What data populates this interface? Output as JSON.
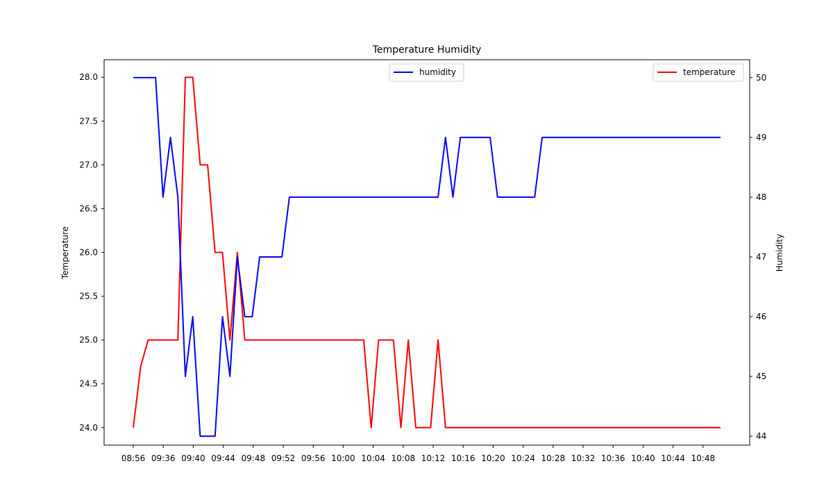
{
  "chart_data": {
    "type": "line",
    "title": "Temperature Humidity",
    "xlabel": "",
    "ylabel_left": "Temperature",
    "ylabel_right": "Humidity",
    "x_ticks": [
      "08:56",
      "09:36",
      "09:40",
      "09:44",
      "09:48",
      "09:52",
      "09:56",
      "10:00",
      "10:04",
      "10:08",
      "10:12",
      "10:16",
      "10:20",
      "10:24",
      "10:28",
      "10:32",
      "10:36",
      "10:40",
      "10:44",
      "10:48"
    ],
    "ylim_left": [
      23.8,
      28.2
    ],
    "ylim_right": [
      43.85,
      50.3
    ],
    "yticks_left": [
      "24.0",
      "24.5",
      "25.0",
      "25.5",
      "26.0",
      "26.5",
      "27.0",
      "27.5",
      "28.0"
    ],
    "yticks_right": [
      "44",
      "45",
      "46",
      "47",
      "48",
      "49",
      "50"
    ],
    "grid": false,
    "series": [
      {
        "name": "temperature",
        "axis": "left",
        "color": "#ff0000",
        "values": [
          [
            0,
            24.0
          ],
          [
            1,
            24.7
          ],
          [
            2,
            25.0
          ],
          [
            3,
            25.0
          ],
          [
            4,
            25.0
          ],
          [
            5,
            25.0
          ],
          [
            6,
            25.0
          ],
          [
            7,
            28.0
          ],
          [
            8,
            28.0
          ],
          [
            9,
            27.0
          ],
          [
            10,
            27.0
          ],
          [
            11,
            26.0
          ],
          [
            12,
            26.0
          ],
          [
            13,
            25.0
          ],
          [
            14,
            26.0
          ],
          [
            15,
            25.0
          ],
          [
            16,
            25.0
          ],
          [
            17,
            25.0
          ],
          [
            18,
            25.0
          ],
          [
            19,
            25.0
          ],
          [
            20,
            25.0
          ],
          [
            21,
            25.0
          ],
          [
            22,
            25.0
          ],
          [
            23,
            25.0
          ],
          [
            24,
            25.0
          ],
          [
            25,
            25.0
          ],
          [
            26,
            25.0
          ],
          [
            27,
            25.0
          ],
          [
            28,
            25.0
          ],
          [
            29,
            25.0
          ],
          [
            30,
            25.0
          ],
          [
            31,
            25.0
          ],
          [
            32,
            24.0
          ],
          [
            33,
            25.0
          ],
          [
            34,
            25.0
          ],
          [
            35,
            25.0
          ],
          [
            36,
            24.0
          ],
          [
            37,
            25.0
          ],
          [
            38,
            24.0
          ],
          [
            39,
            24.0
          ],
          [
            40,
            24.0
          ],
          [
            41,
            25.0
          ],
          [
            42,
            24.0
          ],
          [
            43,
            24.0
          ],
          [
            44,
            24.0
          ],
          [
            45,
            24.0
          ],
          [
            46,
            24.0
          ],
          [
            47,
            24.0
          ],
          [
            48,
            24.0
          ],
          [
            49,
            24.0
          ],
          [
            50,
            24.0
          ],
          [
            51,
            24.0
          ],
          [
            52,
            24.0
          ],
          [
            53,
            24.0
          ],
          [
            54,
            24.0
          ],
          [
            55,
            24.0
          ],
          [
            56,
            24.0
          ],
          [
            57,
            24.0
          ],
          [
            58,
            24.0
          ],
          [
            59,
            24.0
          ],
          [
            60,
            24.0
          ],
          [
            61,
            24.0
          ],
          [
            62,
            24.0
          ],
          [
            63,
            24.0
          ],
          [
            64,
            24.0
          ],
          [
            65,
            24.0
          ],
          [
            66,
            24.0
          ],
          [
            67,
            24.0
          ],
          [
            68,
            24.0
          ],
          [
            69,
            24.0
          ],
          [
            70,
            24.0
          ],
          [
            71,
            24.0
          ],
          [
            72,
            24.0
          ],
          [
            73,
            24.0
          ],
          [
            74,
            24.0
          ],
          [
            75,
            24.0
          ],
          [
            76,
            24.0
          ],
          [
            77,
            24.0
          ],
          [
            78,
            24.0
          ],
          [
            79,
            24.0
          ]
        ]
      },
      {
        "name": "humidity",
        "axis": "right",
        "color": "#0000ff",
        "values": [
          [
            0,
            50
          ],
          [
            1,
            50
          ],
          [
            2,
            50
          ],
          [
            3,
            50
          ],
          [
            4,
            48
          ],
          [
            5,
            49
          ],
          [
            6,
            48
          ],
          [
            7,
            45
          ],
          [
            8,
            46
          ],
          [
            9,
            44
          ],
          [
            10,
            44
          ],
          [
            11,
            44
          ],
          [
            12,
            46
          ],
          [
            13,
            45
          ],
          [
            14,
            47
          ],
          [
            15,
            46
          ],
          [
            16,
            46
          ],
          [
            17,
            47
          ],
          [
            18,
            47
          ],
          [
            19,
            47
          ],
          [
            20,
            47
          ],
          [
            21,
            48
          ],
          [
            22,
            48
          ],
          [
            23,
            48
          ],
          [
            24,
            48
          ],
          [
            25,
            48
          ],
          [
            26,
            48
          ],
          [
            27,
            48
          ],
          [
            28,
            48
          ],
          [
            29,
            48
          ],
          [
            30,
            48
          ],
          [
            31,
            48
          ],
          [
            32,
            48
          ],
          [
            33,
            48
          ],
          [
            34,
            48
          ],
          [
            35,
            48
          ],
          [
            36,
            48
          ],
          [
            37,
            48
          ],
          [
            38,
            48
          ],
          [
            39,
            48
          ],
          [
            40,
            48
          ],
          [
            41,
            48
          ],
          [
            42,
            49
          ],
          [
            43,
            48
          ],
          [
            44,
            49
          ],
          [
            45,
            49
          ],
          [
            46,
            49
          ],
          [
            47,
            49
          ],
          [
            48,
            49
          ],
          [
            49,
            48
          ],
          [
            50,
            48
          ],
          [
            51,
            48
          ],
          [
            52,
            48
          ],
          [
            53,
            48
          ],
          [
            54,
            48
          ],
          [
            55,
            49
          ],
          [
            56,
            49
          ],
          [
            57,
            49
          ],
          [
            58,
            49
          ],
          [
            59,
            49
          ],
          [
            60,
            49
          ],
          [
            61,
            49
          ],
          [
            62,
            49
          ],
          [
            63,
            49
          ],
          [
            64,
            49
          ],
          [
            65,
            49
          ],
          [
            66,
            49
          ],
          [
            67,
            49
          ],
          [
            68,
            49
          ],
          [
            69,
            49
          ],
          [
            70,
            49
          ],
          [
            71,
            49
          ],
          [
            72,
            49
          ],
          [
            73,
            49
          ],
          [
            74,
            49
          ],
          [
            75,
            49
          ],
          [
            76,
            49
          ],
          [
            77,
            49
          ],
          [
            78,
            49
          ],
          [
            79,
            49
          ]
        ]
      }
    ],
    "legends": [
      {
        "entry": "humidity",
        "placement": "top-center"
      },
      {
        "entry": "temperature",
        "placement": "top-right"
      }
    ]
  }
}
